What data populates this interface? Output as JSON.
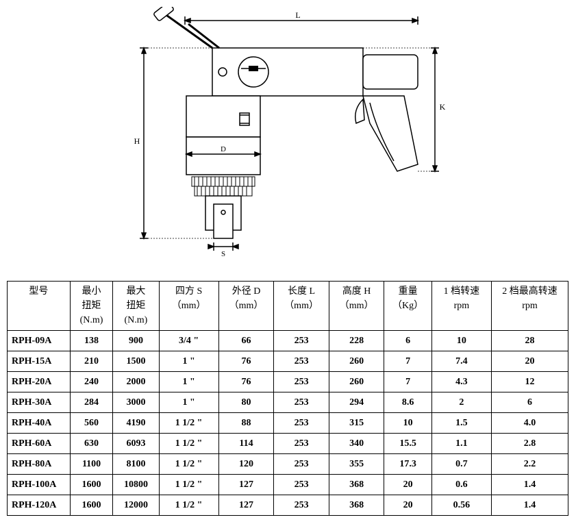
{
  "diagram": {
    "stroke": "#000000",
    "fill": "#ffffff",
    "labels": {
      "L": "L",
      "H": "H",
      "D": "D",
      "S": "S",
      "K": "K"
    }
  },
  "table": {
    "headers": {
      "model": [
        "型号",
        "",
        ""
      ],
      "min": [
        "最小",
        "扭矩",
        "(N.m)"
      ],
      "max": [
        "最大",
        "扭矩",
        "(N.m)"
      ],
      "s": [
        "四方 S",
        "（mm）",
        ""
      ],
      "d": [
        "外径 D",
        "（mm）",
        ""
      ],
      "l": [
        "长度 L",
        "（mm）",
        ""
      ],
      "h": [
        "高度 H",
        "（mm）",
        ""
      ],
      "w": [
        "重量",
        "（Kg）",
        ""
      ],
      "r1": [
        "1 档转速",
        "rpm",
        ""
      ],
      "r2": [
        "2 档最高转速",
        "rpm",
        ""
      ]
    },
    "rows": [
      {
        "model": "RPH-09A",
        "min": "138",
        "max": "900",
        "s": "3/4 \"",
        "d": "66",
        "l": "253",
        "h": "228",
        "w": "6",
        "r1": "10",
        "r2": "28"
      },
      {
        "model": "RPH-15A",
        "min": "210",
        "max": "1500",
        "s": "1 \"",
        "d": "76",
        "l": "253",
        "h": "260",
        "w": "7",
        "r1": "7.4",
        "r2": "20"
      },
      {
        "model": "RPH-20A",
        "min": "240",
        "max": "2000",
        "s": "1 \"",
        "d": "76",
        "l": "253",
        "h": "260",
        "w": "7",
        "r1": "4.3",
        "r2": "12"
      },
      {
        "model": "RPH-30A",
        "min": "284",
        "max": "3000",
        "s": "1 \"",
        "d": "80",
        "l": "253",
        "h": "294",
        "w": "8.6",
        "r1": "2",
        "r2": "6"
      },
      {
        "model": "RPH-40A",
        "min": "560",
        "max": "4190",
        "s": "1 1/2 \"",
        "d": "88",
        "l": "253",
        "h": "315",
        "w": "10",
        "r1": "1.5",
        "r2": "4.0"
      },
      {
        "model": "RPH-60A",
        "min": "630",
        "max": "6093",
        "s": "1 1/2 \"",
        "d": "114",
        "l": "253",
        "h": "340",
        "w": "15.5",
        "r1": "1.1",
        "r2": "2.8"
      },
      {
        "model": "RPH-80A",
        "min": "1100",
        "max": "8100",
        "s": "1 1/2 \"",
        "d": "120",
        "l": "253",
        "h": "355",
        "w": "17.3",
        "r1": "0.7",
        "r2": "2.2"
      },
      {
        "model": "RPH-100A",
        "min": "1600",
        "max": "10800",
        "s": "1 1/2 \"",
        "d": "127",
        "l": "253",
        "h": "368",
        "w": "20",
        "r1": "0.6",
        "r2": "1.4"
      },
      {
        "model": "RPH-120A",
        "min": "1600",
        "max": "12000",
        "s": "1 1/2 \"",
        "d": "127",
        "l": "253",
        "h": "368",
        "w": "20",
        "r1": "0.56",
        "r2": "1.4"
      }
    ]
  }
}
